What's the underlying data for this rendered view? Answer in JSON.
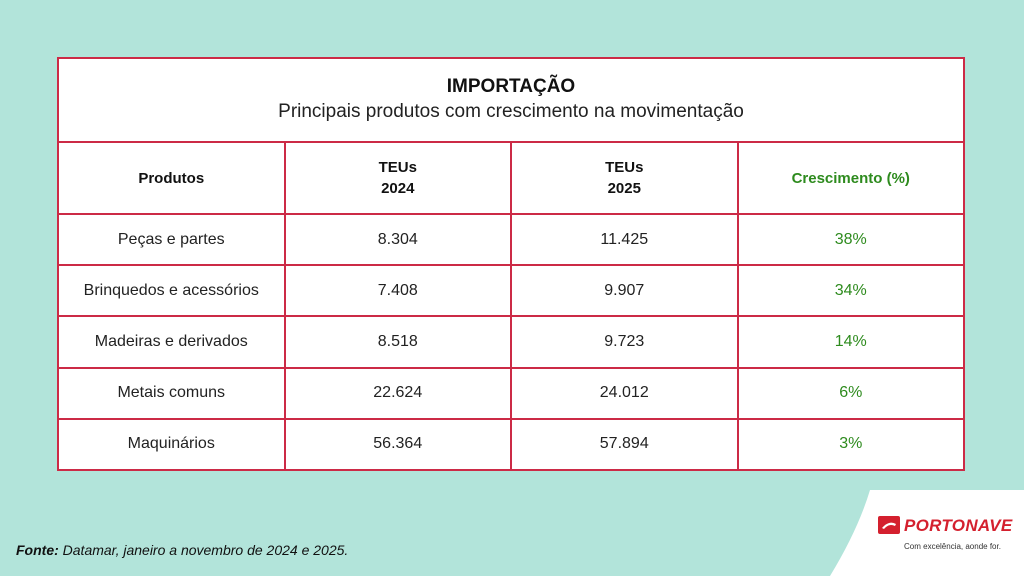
{
  "table": {
    "title": "IMPORTAÇÃO",
    "subtitle": "Principais produtos com crescimento na movimentação",
    "headers": {
      "produtos": "Produtos",
      "teus2024_line1": "TEUs",
      "teus2024_line2": "2024",
      "teus2025_line1": "TEUs",
      "teus2025_line2": "2025",
      "crescimento": "Crescimento (%)"
    },
    "rows": [
      {
        "produto": "Peças e partes",
        "teus_2024": "8.304",
        "teus_2025": "11.425",
        "crescimento": "38%"
      },
      {
        "produto": "Brinquedos e acessórios",
        "teus_2024": "7.408",
        "teus_2025": "9.907",
        "crescimento": "34%"
      },
      {
        "produto": "Madeiras e derivados",
        "teus_2024": "8.518",
        "teus_2025": "9.723",
        "crescimento": "14%"
      },
      {
        "produto": "Metais comuns",
        "teus_2024": "22.624",
        "teus_2025": "24.012",
        "crescimento": "6%"
      },
      {
        "produto": "Maquinários",
        "teus_2024": "56.364",
        "teus_2025": "57.894",
        "crescimento": "3%"
      }
    ]
  },
  "footer": {
    "label": "Fonte:",
    "text": "Datamar, janeiro a novembro de 2024 e 2025."
  },
  "logo": {
    "name": "PORTONAVE",
    "tagline": "Com excelência, aonde for."
  },
  "colors": {
    "background": "#b2e4da",
    "border": "#cc2a46",
    "growth": "#2e8b1e",
    "brand": "#d4202e"
  }
}
